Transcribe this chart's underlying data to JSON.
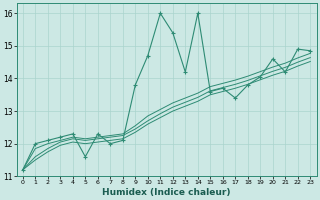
{
  "xlabel": "Humidex (Indice chaleur)",
  "background_color": "#cce8e4",
  "line_color": "#2e8b74",
  "grid_color": "#aad4ce",
  "xlim": [
    -0.5,
    23.5
  ],
  "ylim": [
    11,
    16.3
  ],
  "yticks": [
    11,
    12,
    13,
    14,
    15,
    16
  ],
  "xticks": [
    0,
    1,
    2,
    3,
    4,
    5,
    6,
    7,
    8,
    9,
    10,
    11,
    12,
    13,
    14,
    15,
    16,
    17,
    18,
    19,
    20,
    21,
    22,
    23
  ],
  "x_data": [
    0,
    1,
    2,
    3,
    4,
    5,
    6,
    7,
    8,
    9,
    10,
    11,
    12,
    13,
    14,
    15,
    16,
    17,
    18,
    19,
    20,
    21,
    22,
    23
  ],
  "y_main": [
    11.2,
    12.0,
    12.1,
    12.2,
    12.3,
    11.6,
    12.3,
    12.0,
    12.1,
    13.8,
    14.7,
    16.0,
    15.4,
    14.2,
    16.0,
    13.6,
    13.7,
    13.4,
    13.8,
    14.05,
    14.6,
    14.2,
    14.9,
    14.85
  ],
  "y_trend1": [
    11.2,
    11.5,
    11.75,
    11.95,
    12.05,
    12.0,
    12.05,
    12.1,
    12.15,
    12.35,
    12.6,
    12.8,
    13.0,
    13.15,
    13.3,
    13.5,
    13.6,
    13.7,
    13.82,
    13.96,
    14.1,
    14.22,
    14.38,
    14.52
  ],
  "y_trend2": [
    11.2,
    11.6,
    11.85,
    12.05,
    12.15,
    12.1,
    12.15,
    12.2,
    12.25,
    12.45,
    12.7,
    12.92,
    13.12,
    13.27,
    13.42,
    13.62,
    13.72,
    13.82,
    13.94,
    14.08,
    14.22,
    14.34,
    14.5,
    14.64
  ],
  "y_trend3": [
    11.2,
    11.85,
    12.0,
    12.1,
    12.2,
    12.15,
    12.2,
    12.25,
    12.3,
    12.55,
    12.85,
    13.05,
    13.25,
    13.4,
    13.55,
    13.75,
    13.85,
    13.95,
    14.07,
    14.21,
    14.35,
    14.47,
    14.63,
    14.77
  ]
}
